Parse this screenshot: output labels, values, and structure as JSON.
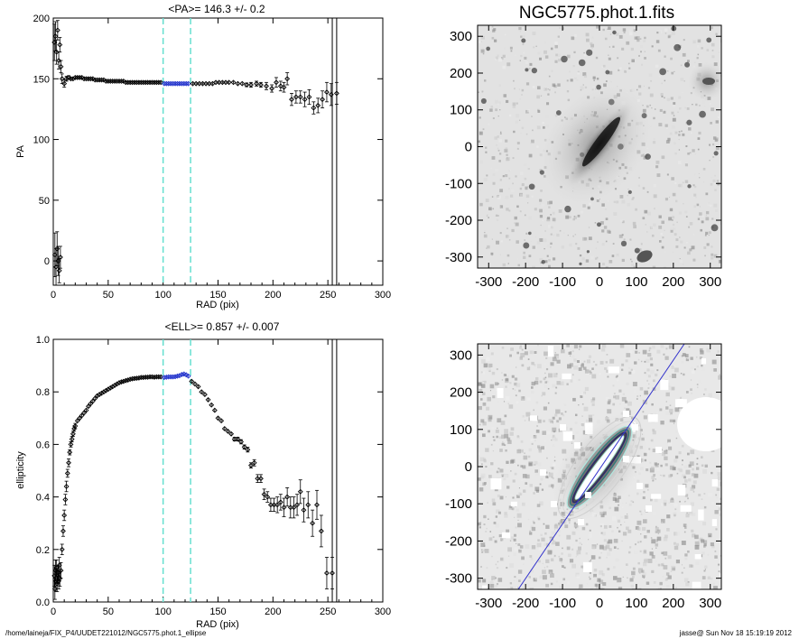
{
  "figure": {
    "image_title": "NGC5775.phot.1.fits",
    "footer_path": "/home/laineja/FIX_P4/UUDET221012/NGC5775.phot.1_ellipse",
    "footer_stamp": "jasse@  Sun Nov 18 15:19:19 2012"
  },
  "colors": {
    "axis": "#000000",
    "points": "#000000",
    "fit_points": "#2233cc",
    "limit_lines": "#66e0d0",
    "pa_line": "#3333cc",
    "image_bg": "#e6e6e6",
    "galaxy_core": "#111111",
    "contour": "#b0e8e0",
    "ellipse_fill": "#ffffff",
    "ellipse_edge": "#2a2a6a"
  },
  "chart_data": [
    {
      "type": "scatter",
      "title": "<PA>= 146.3 +/-   0.2",
      "xlabel": "RAD (pix)",
      "ylabel": "PA",
      "xlim": [
        0,
        300
      ],
      "ylim": [
        -20,
        200
      ],
      "xticks": [
        0,
        50,
        100,
        150,
        200,
        250,
        300
      ],
      "yticks": [
        0,
        50,
        100,
        150,
        200
      ],
      "vlines_dashed": [
        100,
        125
      ],
      "vlines_solid": [
        254,
        258
      ],
      "fit_range": [
        100,
        125
      ],
      "points": [
        [
          1,
          180,
          15
        ],
        [
          1.5,
          5,
          18
        ],
        [
          2,
          185,
          12
        ],
        [
          2.5,
          -5,
          15
        ],
        [
          3,
          172,
          10
        ],
        [
          3.5,
          10,
          14
        ],
        [
          4,
          190,
          8
        ],
        [
          4.5,
          0,
          12
        ],
        [
          5,
          165,
          7
        ],
        [
          5.5,
          -8,
          10
        ],
        [
          6,
          178,
          6
        ],
        [
          6.5,
          3,
          9
        ],
        [
          7,
          160,
          5
        ],
        [
          8,
          150,
          4
        ],
        [
          10,
          146,
          3
        ],
        [
          12,
          150,
          2
        ],
        [
          14,
          151,
          1.5
        ],
        [
          16,
          150,
          1
        ],
        [
          18,
          150,
          1
        ],
        [
          20,
          151,
          1
        ],
        [
          22,
          151,
          1
        ],
        [
          24,
          151,
          1
        ],
        [
          26,
          151,
          1
        ],
        [
          28,
          150,
          1
        ],
        [
          30,
          150,
          1
        ],
        [
          32,
          150,
          1
        ],
        [
          34,
          150,
          1
        ],
        [
          36,
          150,
          1
        ],
        [
          38,
          149,
          1
        ],
        [
          40,
          149,
          1
        ],
        [
          42,
          149,
          1
        ],
        [
          44,
          149,
          1
        ],
        [
          46,
          149,
          1
        ],
        [
          48,
          148,
          1
        ],
        [
          50,
          148,
          1
        ],
        [
          52,
          148,
          1
        ],
        [
          54,
          148,
          1
        ],
        [
          56,
          148,
          1
        ],
        [
          58,
          148,
          1
        ],
        [
          60,
          148,
          1
        ],
        [
          62,
          148,
          1
        ],
        [
          64,
          148,
          1
        ],
        [
          66,
          147,
          1
        ],
        [
          68,
          147,
          1
        ],
        [
          70,
          147,
          1
        ],
        [
          72,
          147,
          1
        ],
        [
          74,
          147,
          1
        ],
        [
          76,
          147,
          1
        ],
        [
          78,
          147,
          1
        ],
        [
          80,
          147,
          1
        ],
        [
          82,
          147,
          1
        ],
        [
          84,
          147,
          1
        ],
        [
          86,
          147,
          1
        ],
        [
          88,
          147,
          1
        ],
        [
          90,
          147,
          1
        ],
        [
          92,
          147,
          1
        ],
        [
          94,
          147,
          1
        ],
        [
          96,
          147,
          1
        ],
        [
          98,
          147,
          1
        ],
        [
          101,
          146,
          1
        ],
        [
          103,
          146,
          1
        ],
        [
          105,
          146,
          1
        ],
        [
          107,
          146,
          1
        ],
        [
          109,
          146,
          1
        ],
        [
          111,
          146,
          1
        ],
        [
          113,
          146,
          1
        ],
        [
          115,
          146,
          1
        ],
        [
          117,
          146,
          1
        ],
        [
          119,
          146,
          1
        ],
        [
          121,
          146,
          1
        ],
        [
          123,
          146,
          1
        ],
        [
          127,
          146,
          1
        ],
        [
          130,
          146,
          1
        ],
        [
          133,
          146,
          1
        ],
        [
          136,
          146,
          1
        ],
        [
          139,
          146,
          1
        ],
        [
          142,
          146,
          1
        ],
        [
          145,
          146,
          1
        ],
        [
          148,
          147,
          1
        ],
        [
          151,
          147,
          1
        ],
        [
          154,
          147,
          1
        ],
        [
          157,
          147,
          1
        ],
        [
          160,
          147,
          1
        ],
        [
          164,
          147,
          1
        ],
        [
          168,
          146,
          1
        ],
        [
          172,
          146,
          1
        ],
        [
          176,
          145,
          1.5
        ],
        [
          180,
          145,
          2
        ],
        [
          185,
          146,
          2
        ],
        [
          189,
          145,
          2
        ],
        [
          194,
          144,
          3
        ],
        [
          199,
          142,
          3
        ],
        [
          203,
          147,
          4
        ],
        [
          207,
          144,
          4
        ],
        [
          210,
          143,
          4
        ],
        [
          213,
          150,
          5
        ],
        [
          217,
          133,
          5
        ],
        [
          221,
          135,
          5
        ],
        [
          225,
          135,
          5
        ],
        [
          229,
          133,
          6
        ],
        [
          233,
          135,
          6
        ],
        [
          237,
          126,
          5
        ],
        [
          241,
          128,
          6
        ],
        [
          245,
          133,
          7
        ],
        [
          249,
          139,
          8
        ],
        [
          253,
          137,
          9
        ],
        [
          258,
          138,
          9
        ]
      ]
    },
    {
      "type": "scatter",
      "title": "<ELL>= 0.857 +/-  0.007",
      "xlabel": "RAD (pix)",
      "ylabel": "ellipticity",
      "xlim": [
        0,
        300
      ],
      "ylim": [
        0,
        1
      ],
      "xticks": [
        0,
        50,
        100,
        150,
        200,
        250,
        300
      ],
      "yticks": [
        0.0,
        0.2,
        0.4,
        0.6,
        0.8,
        1.0
      ],
      "vlines_dashed": [
        100,
        125
      ],
      "vlines_solid": [
        254,
        258
      ],
      "fit_range": [
        100,
        125
      ],
      "points": [
        [
          1,
          0.1,
          0.04
        ],
        [
          1.5,
          0.05,
          0.04
        ],
        [
          2,
          0.12,
          0.04
        ],
        [
          2.5,
          0.08,
          0.04
        ],
        [
          3,
          0.13,
          0.03
        ],
        [
          3.5,
          0.07,
          0.03
        ],
        [
          4,
          0.1,
          0.03
        ],
        [
          4.5,
          0.11,
          0.03
        ],
        [
          5,
          0.08,
          0.03
        ],
        [
          5.5,
          0.14,
          0.03
        ],
        [
          6,
          0.09,
          0.03
        ],
        [
          7,
          0.12,
          0.03
        ],
        [
          8,
          0.2,
          0.02
        ],
        [
          9,
          0.27,
          0.02
        ],
        [
          10,
          0.33,
          0.02
        ],
        [
          11,
          0.39,
          0.02
        ],
        [
          12,
          0.44,
          0.02
        ],
        [
          13,
          0.49,
          0.015
        ],
        [
          14,
          0.53,
          0.015
        ],
        [
          15,
          0.57,
          0.01
        ],
        [
          16,
          0.6,
          0.01
        ],
        [
          17,
          0.62,
          0.01
        ],
        [
          18,
          0.64,
          0.01
        ],
        [
          19,
          0.66,
          0.01
        ],
        [
          20,
          0.67,
          0.01
        ],
        [
          22,
          0.69,
          0.005
        ],
        [
          24,
          0.7,
          0.005
        ],
        [
          26,
          0.71,
          0.005
        ],
        [
          28,
          0.72,
          0.005
        ],
        [
          30,
          0.73,
          0.005
        ],
        [
          32,
          0.745,
          0.005
        ],
        [
          34,
          0.755,
          0.005
        ],
        [
          36,
          0.765,
          0.005
        ],
        [
          38,
          0.775,
          0.005
        ],
        [
          40,
          0.785,
          0.005
        ],
        [
          42,
          0.79,
          0.005
        ],
        [
          44,
          0.795,
          0.005
        ],
        [
          46,
          0.8,
          0.005
        ],
        [
          48,
          0.805,
          0.005
        ],
        [
          50,
          0.81,
          0.005
        ],
        [
          52,
          0.815,
          0.005
        ],
        [
          54,
          0.82,
          0.005
        ],
        [
          56,
          0.825,
          0.005
        ],
        [
          58,
          0.83,
          0.005
        ],
        [
          60,
          0.835,
          0.005
        ],
        [
          62,
          0.838,
          0.005
        ],
        [
          64,
          0.84,
          0.005
        ],
        [
          66,
          0.843,
          0.005
        ],
        [
          68,
          0.845,
          0.005
        ],
        [
          70,
          0.848,
          0.005
        ],
        [
          72,
          0.85,
          0.005
        ],
        [
          74,
          0.851,
          0.005
        ],
        [
          76,
          0.852,
          0.005
        ],
        [
          78,
          0.853,
          0.005
        ],
        [
          80,
          0.855,
          0.005
        ],
        [
          82,
          0.855,
          0.005
        ],
        [
          84,
          0.856,
          0.005
        ],
        [
          86,
          0.856,
          0.005
        ],
        [
          88,
          0.857,
          0.005
        ],
        [
          90,
          0.857,
          0.005
        ],
        [
          92,
          0.856,
          0.005
        ],
        [
          94,
          0.857,
          0.005
        ],
        [
          96,
          0.857,
          0.005
        ],
        [
          98,
          0.857,
          0.005
        ],
        [
          101,
          0.855,
          0.005
        ],
        [
          103,
          0.856,
          0.005
        ],
        [
          105,
          0.857,
          0.005
        ],
        [
          107,
          0.857,
          0.005
        ],
        [
          109,
          0.857,
          0.005
        ],
        [
          111,
          0.858,
          0.005
        ],
        [
          113,
          0.86,
          0.005
        ],
        [
          115,
          0.862,
          0.005
        ],
        [
          117,
          0.866,
          0.005
        ],
        [
          119,
          0.868,
          0.005
        ],
        [
          121,
          0.865,
          0.005
        ],
        [
          123,
          0.86,
          0.005
        ],
        [
          126,
          0.84,
          0.005
        ],
        [
          129,
          0.83,
          0.005
        ],
        [
          132,
          0.82,
          0.005
        ],
        [
          135,
          0.8,
          0.005
        ],
        [
          138,
          0.79,
          0.005
        ],
        [
          141,
          0.77,
          0.005
        ],
        [
          144,
          0.75,
          0.005
        ],
        [
          147,
          0.73,
          0.005
        ],
        [
          150,
          0.7,
          0.005
        ],
        [
          153,
          0.69,
          0.005
        ],
        [
          156,
          0.66,
          0.006
        ],
        [
          159,
          0.65,
          0.006
        ],
        [
          162,
          0.64,
          0.006
        ],
        [
          165,
          0.62,
          0.007
        ],
        [
          168,
          0.62,
          0.007
        ],
        [
          171,
          0.61,
          0.008
        ],
        [
          174,
          0.59,
          0.008
        ],
        [
          177,
          0.58,
          0.009
        ],
        [
          180,
          0.52,
          0.01
        ],
        [
          183,
          0.53,
          0.012
        ],
        [
          186,
          0.47,
          0.015
        ],
        [
          189,
          0.47,
          0.015
        ],
        [
          192,
          0.41,
          0.02
        ],
        [
          195,
          0.4,
          0.02
        ],
        [
          198,
          0.37,
          0.025
        ],
        [
          201,
          0.37,
          0.025
        ],
        [
          204,
          0.37,
          0.03
        ],
        [
          207,
          0.38,
          0.03
        ],
        [
          210,
          0.36,
          0.035
        ],
        [
          213,
          0.4,
          0.035
        ],
        [
          216,
          0.36,
          0.04
        ],
        [
          219,
          0.36,
          0.04
        ],
        [
          222,
          0.37,
          0.04
        ],
        [
          225,
          0.42,
          0.045
        ],
        [
          228,
          0.35,
          0.045
        ],
        [
          232,
          0.37,
          0.05
        ],
        [
          236,
          0.3,
          0.05
        ],
        [
          240,
          0.37,
          0.055
        ],
        [
          244,
          0.27,
          0.06
        ],
        [
          249,
          0.11,
          0.06
        ],
        [
          254,
          0.11,
          0.06
        ]
      ]
    }
  ],
  "image_panels": [
    {
      "title": "NGC5775.phot.1.fits",
      "xlim": [
        -330,
        330
      ],
      "ylim": [
        -330,
        330
      ],
      "xticks": [
        -300,
        -200,
        -100,
        0,
        100,
        200,
        300
      ],
      "yticks": [
        -300,
        -200,
        -100,
        0,
        100,
        200,
        300
      ],
      "galaxy_pa_deg": 146.3,
      "galaxy_ellipticity": 0.857
    },
    {
      "title": "",
      "xlim": [
        -330,
        330
      ],
      "ylim": [
        -330,
        330
      ],
      "xticks": [
        -300,
        -200,
        -100,
        0,
        100,
        200,
        300
      ],
      "yticks": [
        -300,
        -200,
        -100,
        0,
        100,
        200,
        300
      ],
      "galaxy_pa_deg": 146.3,
      "galaxy_ellipticity": 0.857
    }
  ]
}
